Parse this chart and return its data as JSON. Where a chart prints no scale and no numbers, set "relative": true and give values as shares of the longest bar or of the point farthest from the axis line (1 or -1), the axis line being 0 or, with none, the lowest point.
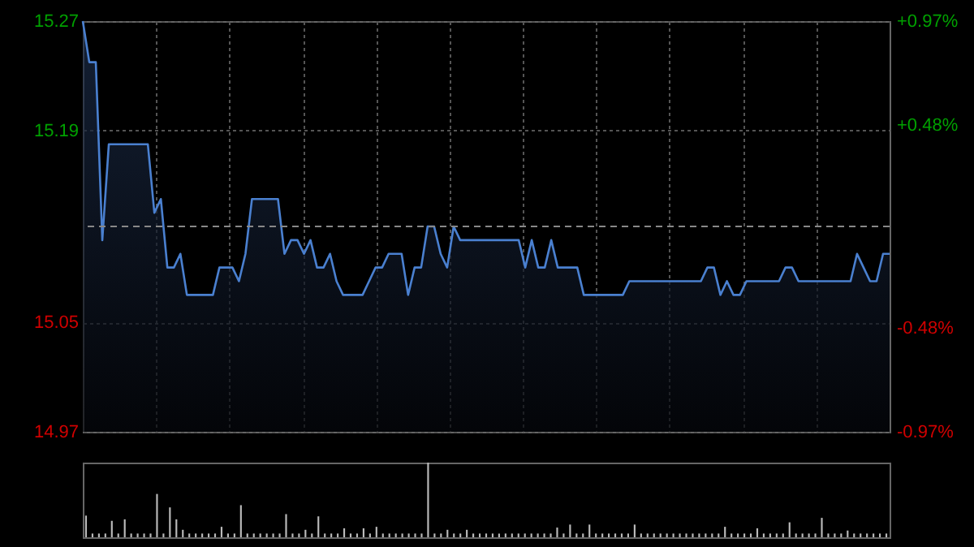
{
  "chart_data": [
    {
      "type": "area",
      "categories": [
        null,
        null,
        null,
        null,
        null,
        null,
        null,
        null,
        null,
        null,
        null,
        null,
        null,
        null,
        null,
        null,
        null,
        null,
        null,
        null,
        null,
        null,
        null,
        null,
        null,
        null,
        null,
        null,
        null,
        null,
        null,
        null,
        null,
        null,
        null,
        null,
        null,
        null,
        null,
        null,
        null,
        null,
        null,
        null,
        null,
        null,
        null,
        null,
        null,
        null,
        null,
        null,
        null,
        null,
        null,
        null,
        null,
        null,
        null,
        null,
        null,
        null,
        null,
        null,
        null,
        null,
        null,
        null,
        null,
        null,
        null,
        null,
        null,
        null,
        null,
        null,
        null,
        null,
        null,
        null,
        null,
        null,
        null,
        null,
        null,
        null,
        null,
        null,
        null,
        null,
        null,
        null,
        null,
        null,
        null,
        null,
        null,
        null,
        null,
        null,
        null,
        null,
        null,
        null,
        null,
        null,
        null,
        null,
        null,
        null,
        null,
        null,
        null,
        null,
        null,
        null,
        null,
        null,
        null,
        null,
        null,
        null,
        null,
        null,
        null
      ],
      "values": [
        15.27,
        15.24,
        15.24,
        15.11,
        15.18,
        15.18,
        15.18,
        15.18,
        15.18,
        15.18,
        15.18,
        15.13,
        15.14,
        15.09,
        15.09,
        15.1,
        15.07,
        15.07,
        15.07,
        15.07,
        15.07,
        15.09,
        15.09,
        15.09,
        15.08,
        15.1,
        15.14,
        15.14,
        15.14,
        15.14,
        15.14,
        15.1,
        15.11,
        15.11,
        15.1,
        15.11,
        15.09,
        15.09,
        15.1,
        15.08,
        15.07,
        15.07,
        15.07,
        15.07,
        15.08,
        15.09,
        15.09,
        15.1,
        15.1,
        15.1,
        15.07,
        15.09,
        15.09,
        15.12,
        15.12,
        15.1,
        15.09,
        15.12,
        15.11,
        15.11,
        15.11,
        15.11,
        15.11,
        15.11,
        15.11,
        15.11,
        15.11,
        15.11,
        15.09,
        15.11,
        15.09,
        15.09,
        15.11,
        15.09,
        15.09,
        15.09,
        15.09,
        15.07,
        15.07,
        15.07,
        15.07,
        15.07,
        15.07,
        15.07,
        15.08,
        15.08,
        15.08,
        15.08,
        15.08,
        15.08,
        15.08,
        15.08,
        15.08,
        15.08,
        15.08,
        15.08,
        15.09,
        15.09,
        15.07,
        15.08,
        15.07,
        15.07,
        15.08,
        15.08,
        15.08,
        15.08,
        15.08,
        15.08,
        15.09,
        15.09,
        15.08,
        15.08,
        15.08,
        15.08,
        15.08,
        15.08,
        15.08,
        15.08,
        15.08,
        15.1,
        15.09,
        15.08,
        15.08,
        15.1,
        15.1
      ],
      "color": "#4a80d0",
      "ylim": [
        14.97,
        15.27
      ],
      "yticks": [
        14.97,
        15.05,
        15.19,
        15.27
      ],
      "y2lim": [
        -0.97,
        0.97
      ],
      "y2ticks": [
        {
          "value": -0.97,
          "label": "-0.97%"
        },
        {
          "value": -0.48,
          "label": "-0.48%"
        },
        {
          "value": 0.48,
          "label": "+0.48%"
        },
        {
          "value": 0.97,
          "label": "+0.97%"
        }
      ],
      "ref_lines": [
        {
          "axis": "y",
          "value": 15.12,
          "color": "#888888",
          "line_style": "dashed"
        }
      ],
      "grid": true
    },
    {
      "type": "bar",
      "relative": true,
      "color": "#bbbbbb",
      "categories": [
        null,
        null,
        null,
        null,
        null,
        null,
        null,
        null,
        null,
        null,
        null,
        null,
        null,
        null,
        null,
        null,
        null,
        null,
        null,
        null,
        null,
        null,
        null,
        null,
        null,
        null,
        null,
        null,
        null,
        null,
        null,
        null,
        null,
        null,
        null,
        null,
        null,
        null,
        null,
        null,
        null,
        null,
        null,
        null,
        null,
        null,
        null,
        null,
        null,
        null,
        null,
        null,
        null,
        null,
        null,
        null,
        null,
        null,
        null,
        null,
        null,
        null,
        null,
        null,
        null,
        null,
        null,
        null,
        null,
        null,
        null,
        null,
        null,
        null,
        null,
        null,
        null,
        null,
        null,
        null,
        null,
        null,
        null,
        null,
        null,
        null,
        null,
        null,
        null,
        null,
        null,
        null,
        null,
        null,
        null,
        null,
        null,
        null,
        null,
        null,
        null,
        null,
        null,
        null,
        null,
        null,
        null,
        null,
        null,
        null,
        null,
        null,
        null,
        null,
        null,
        null,
        null,
        null,
        null,
        null,
        null,
        null,
        null,
        null,
        null
      ],
      "values": [
        0.29,
        0.05,
        0.05,
        0.05,
        0.22,
        0.05,
        0.24,
        0.05,
        0.05,
        0.05,
        0.05,
        0.58,
        0.05,
        0.4,
        0.24,
        0.1,
        0.05,
        0.05,
        0.05,
        0.05,
        0.05,
        0.14,
        0.05,
        0.05,
        0.43,
        0.05,
        0.05,
        0.05,
        0.05,
        0.05,
        0.05,
        0.31,
        0.05,
        0.05,
        0.1,
        0.05,
        0.28,
        0.05,
        0.05,
        0.05,
        0.12,
        0.05,
        0.05,
        0.12,
        0.05,
        0.14,
        0.05,
        0.05,
        0.05,
        0.05,
        0.05,
        0.05,
        0.05,
        1,
        0.05,
        0.05,
        0.1,
        0.05,
        0.05,
        0.1,
        0.05,
        0.05,
        0.05,
        0.05,
        0.05,
        0.05,
        0.05,
        0.05,
        0.05,
        0.05,
        0.05,
        0.05,
        0.05,
        0.13,
        0.05,
        0.17,
        0.05,
        0.05,
        0.17,
        0.05,
        0.05,
        0.05,
        0.05,
        0.05,
        0.05,
        0.17,
        0.05,
        0.05,
        0.05,
        0.05,
        0.05,
        0.05,
        0.05,
        0.05,
        0.05,
        0.05,
        0.05,
        0.05,
        0.05,
        0.14,
        0.05,
        0.05,
        0.05,
        0.05,
        0.12,
        0.05,
        0.05,
        0.05,
        0.05,
        0.2,
        0.05,
        0.05,
        0.05,
        0.05,
        0.26,
        0.05,
        0.05,
        0.05,
        0.09,
        0.05,
        0.05,
        0.05,
        0.05,
        0.05,
        0.05
      ]
    }
  ]
}
